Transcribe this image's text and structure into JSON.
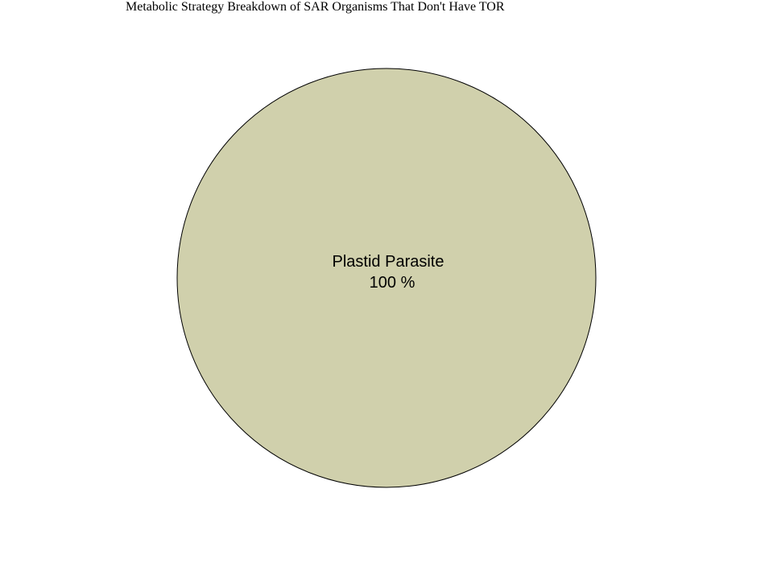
{
  "chart_data": {
    "type": "pie",
    "title": "Metabolic Strategy Breakdown of SAR Organisms That Don't Have TOR",
    "slices": [
      {
        "label": "Plastid Parasite",
        "value": 100,
        "percent_label": "100 %",
        "color": "#d0d0ac"
      }
    ],
    "legend": "none"
  }
}
